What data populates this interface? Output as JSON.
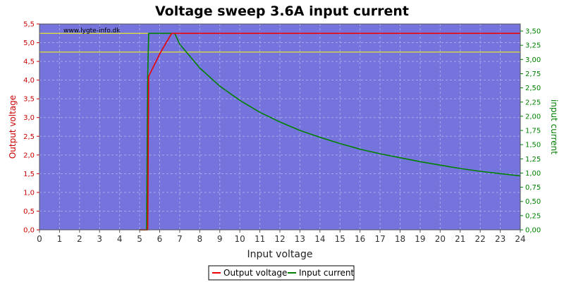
{
  "chart_data": {
    "type": "line",
    "title": "Voltage sweep 3.6A input current",
    "watermark": "www.lygte-info.dk",
    "xlabel": "Input voltage",
    "ylabel_left": "Output voltage",
    "ylabel_right": "input current",
    "xlim": [
      0,
      24
    ],
    "ylim_left": [
      0,
      5.5
    ],
    "ylim_right": [
      0,
      3.625
    ],
    "x_ticks": [
      "0",
      "1",
      "2",
      "3",
      "4",
      "5",
      "6",
      "7",
      "8",
      "9",
      "10",
      "11",
      "12",
      "13",
      "14",
      "15",
      "16",
      "17",
      "18",
      "19",
      "20",
      "21",
      "22",
      "23",
      "24"
    ],
    "y_left_ticks": [
      "0,0",
      "0,5",
      "1,0",
      "1,5",
      "2,0",
      "2,5",
      "3,0",
      "3,5",
      "4,0",
      "4,5",
      "5,0",
      "5,5"
    ],
    "y_right_ticks": [
      "0,00",
      "0,25",
      "0,50",
      "0,75",
      "1,00",
      "1,25",
      "1,50",
      "1,75",
      "2,00",
      "2,25",
      "2,50",
      "2,75",
      "3,00",
      "3,25",
      "3,50"
    ],
    "reference_lines_left": [
      5.25,
      4.75
    ],
    "grid": true,
    "legend_position": "bottom-center",
    "colors": {
      "plot_bg": "#7474dc",
      "grid": "#a8a8ee",
      "reference": "#ffff00",
      "output_voltage": "#ee0000",
      "input_current": "#008000"
    },
    "series": [
      {
        "name": "Output voltage",
        "axis": "left",
        "color": "#ee0000",
        "x": [
          5.0,
          5.35,
          5.4,
          5.45,
          6.0,
          6.6,
          24.0
        ],
        "y": [
          0.0,
          0.0,
          0.0,
          4.1,
          4.7,
          5.25,
          5.25
        ]
      },
      {
        "name": "Input current",
        "axis": "right",
        "color": "#008000",
        "x": [
          5.0,
          5.35,
          5.4,
          5.45,
          6.6,
          6.75,
          7,
          8,
          9,
          10,
          11,
          12,
          13,
          14,
          15,
          16,
          17,
          18,
          19,
          20,
          21,
          22,
          23,
          24
        ],
        "y": [
          0.0,
          0.0,
          2.7,
          3.46,
          3.46,
          3.46,
          3.27,
          2.85,
          2.53,
          2.28,
          2.07,
          1.9,
          1.75,
          1.63,
          1.52,
          1.42,
          1.34,
          1.27,
          1.2,
          1.14,
          1.08,
          1.03,
          0.99,
          0.95
        ]
      }
    ]
  }
}
